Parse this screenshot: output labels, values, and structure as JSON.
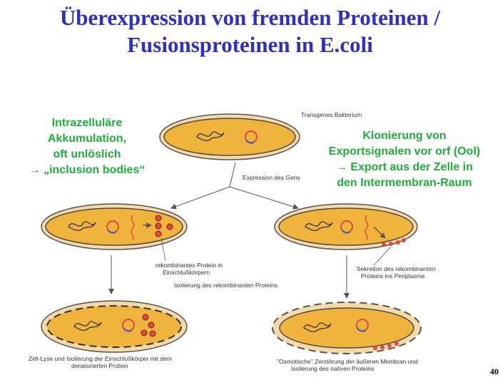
{
  "title": {
    "line1": "Überexpression von fremden Proteinen /",
    "line2": "Fusionsproteinen in E.coli"
  },
  "left_note": {
    "lines": [
      "Intrazelluläre",
      "Akkumulation,",
      "oft unlöslich",
      "→ „inclusion bodies“"
    ]
  },
  "right_note": {
    "lines": [
      "Klonierung von",
      "Exportsignalen vor orf (Ool)",
      "→ Export aus der Zelle in",
      "den Intermembran-Raum"
    ]
  },
  "labels": {
    "transgenic": "Transgenes Bakterium",
    "expression": "Expression des Gens",
    "inclusion_1": "rekombinantes Protein in",
    "inclusion_2": "Einschlußkörpern",
    "isolation": "Isolierung des rekombinanten Proteins",
    "secretion_1": "Sekretion des rekombinanten",
    "secretion_2": "Proteins ins Periplasma",
    "lysis_1": "Zell-Lyse und Isolierung der Einschlußkörper mit dem",
    "lysis_2": "denaturierten Protein",
    "osmotic_1": "\"Osmotische\" Zerstörung der äußeren Membran und",
    "osmotic_2": "Isolierung des nativen Proteins"
  },
  "page_number": "40",
  "colors": {
    "title": "#2e2ec8",
    "notes": "#1fae3a",
    "cytoplasm": "#f0b43c",
    "cell_border": "#4a4a4a",
    "periplasm": "#f5d9a8",
    "protein": "#e04a3a"
  }
}
